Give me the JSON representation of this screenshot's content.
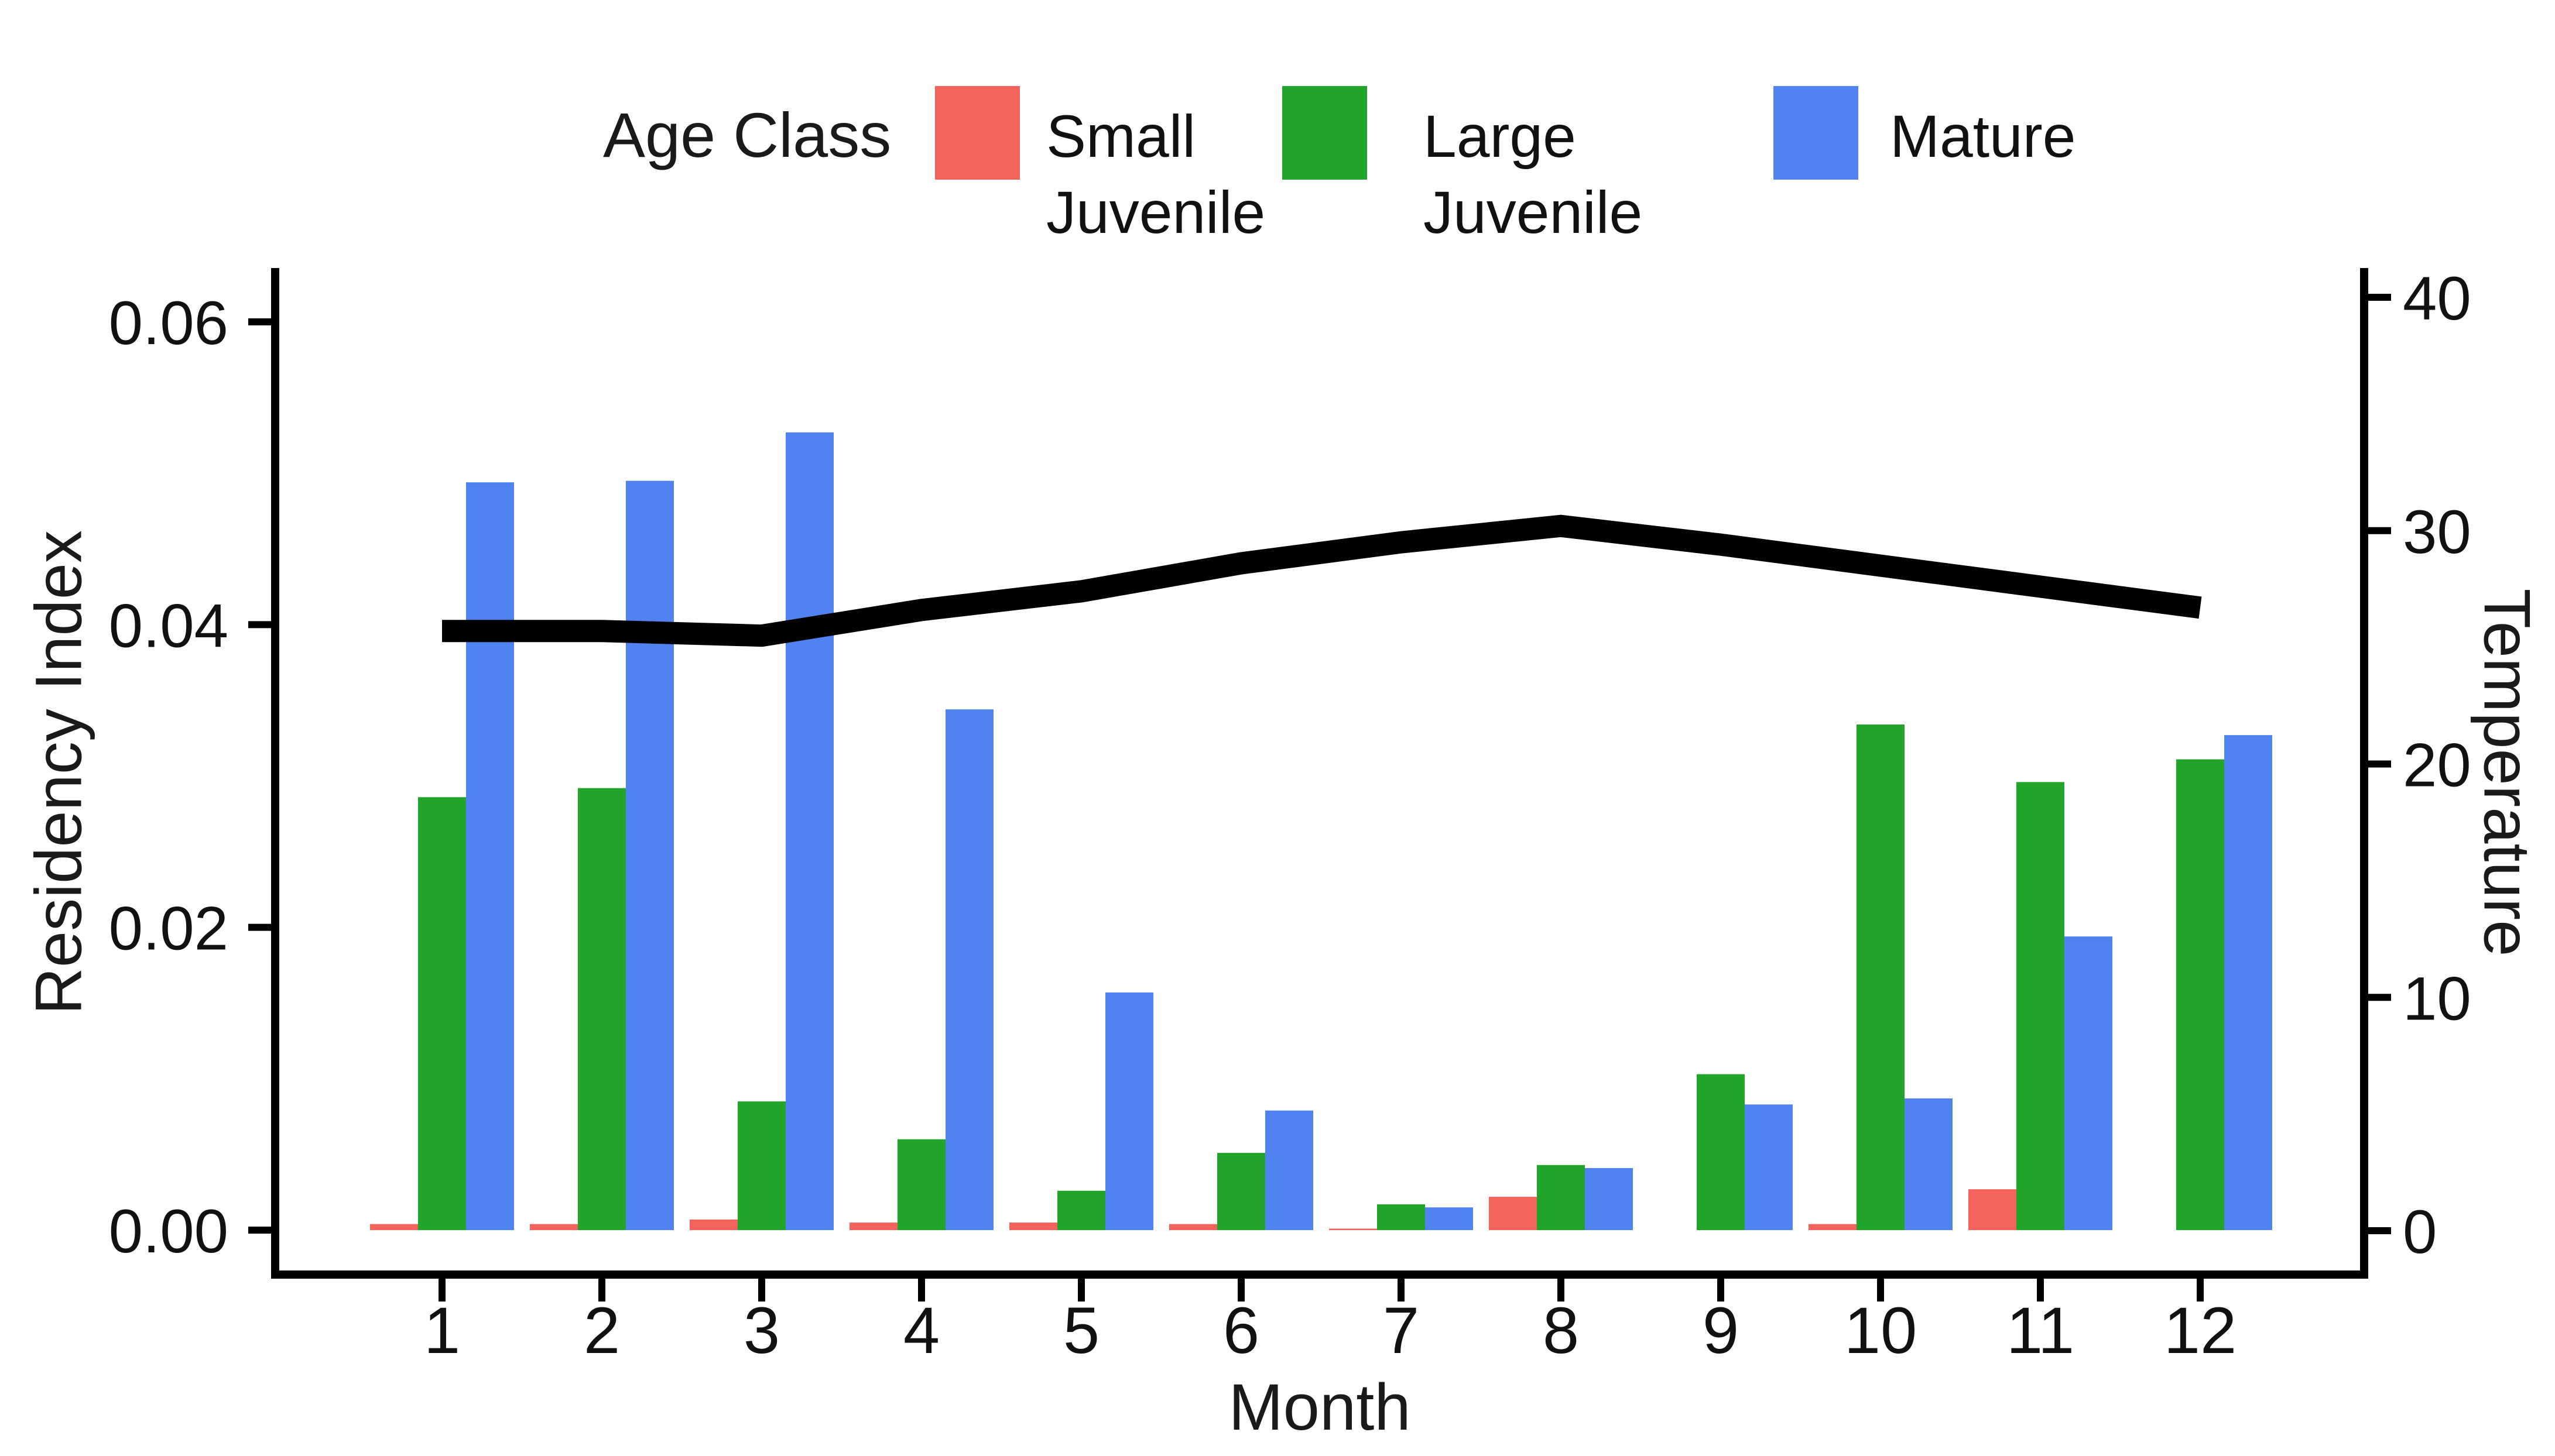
{
  "chart_data": {
    "type": "bar",
    "title": "",
    "legend_title": "Age Class",
    "legend_position": "top",
    "grid": false,
    "categories": [
      1,
      2,
      3,
      4,
      5,
      6,
      7,
      8,
      9,
      10,
      11,
      12
    ],
    "series": [
      {
        "name": "Small Juvenile",
        "color": "#F4635B",
        "values": [
          0.0004,
          0.0004,
          0.0007,
          0.0005,
          0.0005,
          0.0004,
          0.0001,
          0.0022,
          null,
          0.0004,
          0.0027,
          null
        ]
      },
      {
        "name": "Large Juvenile",
        "color": "#20A42A",
        "values": [
          0.0286,
          0.0292,
          0.0085,
          0.006,
          0.0026,
          0.0051,
          0.0017,
          0.0043,
          0.0103,
          0.0334,
          0.0296,
          0.0311
        ]
      },
      {
        "name": "Mature",
        "color": "#5082F0",
        "values": [
          0.0494,
          0.0495,
          0.0527,
          0.0344,
          0.0157,
          0.0079,
          0.0015,
          0.0041,
          0.0083,
          0.0087,
          0.0194,
          0.0327
        ]
      }
    ],
    "line_series": {
      "name": "Temperature",
      "color": "#000000",
      "axis": "right",
      "values": [
        25.7,
        25.7,
        25.5,
        26.6,
        27.4,
        28.6,
        29.5,
        30.2,
        29.4,
        28.5,
        27.6,
        26.7
      ]
    },
    "x_axis": {
      "label": "Month",
      "ticks": [
        "1",
        "2",
        "3",
        "4",
        "5",
        "6",
        "7",
        "8",
        "9",
        "10",
        "11",
        "12"
      ]
    },
    "y_axis_left": {
      "label": "Residency Index",
      "ticks": [
        "0.00",
        "0.02",
        "0.04",
        "0.06"
      ],
      "tick_values": [
        0.0,
        0.02,
        0.04,
        0.06
      ],
      "range": [
        0,
        0.06
      ]
    },
    "y_axis_right": {
      "label": "Temperature",
      "ticks": [
        "0",
        "10",
        "20",
        "30",
        "40"
      ],
      "tick_values": [
        0,
        10,
        20,
        30,
        40
      ],
      "range": [
        0,
        40
      ]
    }
  }
}
